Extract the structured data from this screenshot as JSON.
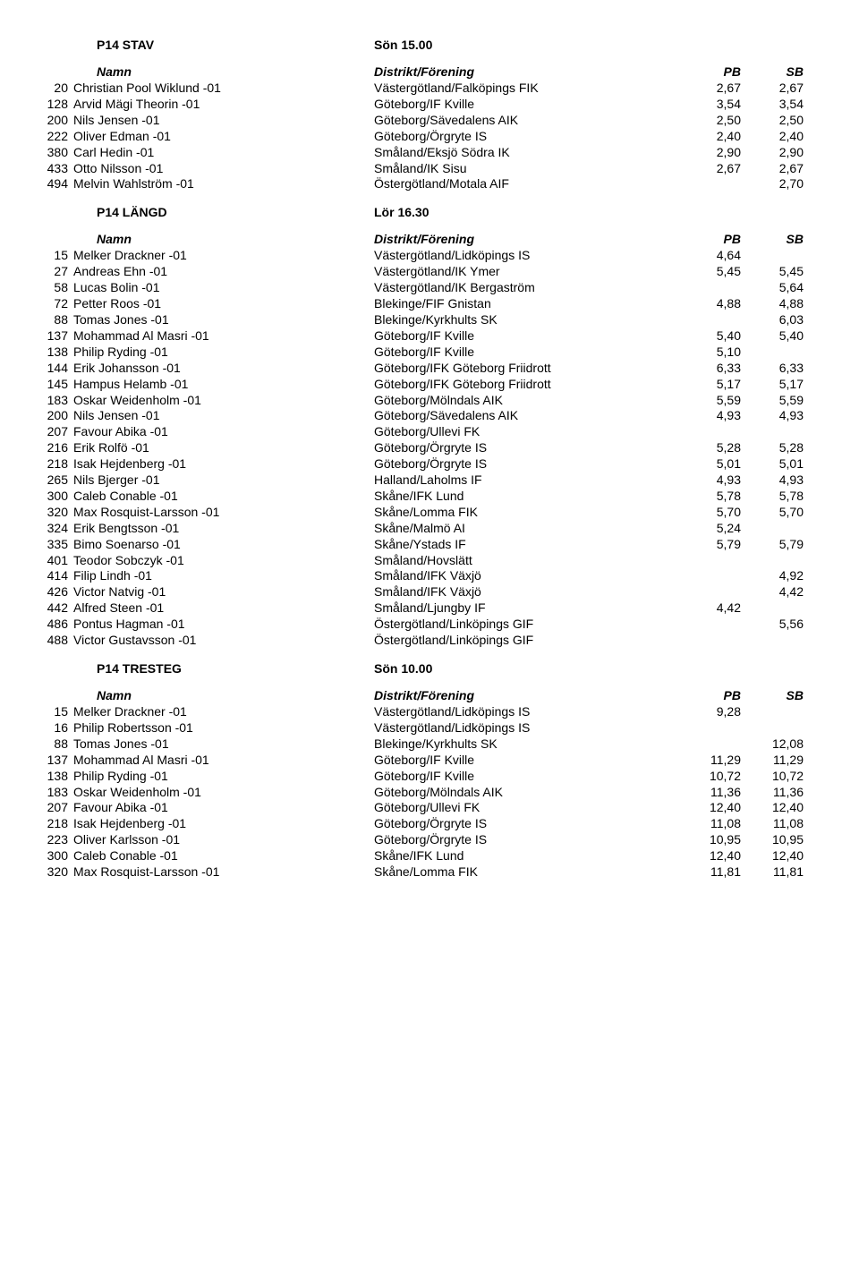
{
  "sections": [
    {
      "title": "P14 STAV",
      "time": "Sön 15.00",
      "header": {
        "name": "Namn",
        "dist": "Distrikt/Förening",
        "pb": "PB",
        "sb": "SB"
      },
      "rows": [
        {
          "num": "20",
          "name": "Christian Pool Wiklund -01",
          "dist": "Västergötland/Falköpings FIK",
          "pb": "2,67",
          "sb": "2,67"
        },
        {
          "num": "128",
          "name": "Arvid Mägi Theorin -01",
          "dist": "Göteborg/IF Kville",
          "pb": "3,54",
          "sb": "3,54"
        },
        {
          "num": "200",
          "name": "Nils Jensen -01",
          "dist": "Göteborg/Sävedalens AIK",
          "pb": "2,50",
          "sb": "2,50"
        },
        {
          "num": "222",
          "name": "Oliver Edman -01",
          "dist": "Göteborg/Örgryte IS",
          "pb": "2,40",
          "sb": "2,40"
        },
        {
          "num": "380",
          "name": "Carl Hedin -01",
          "dist": "Småland/Eksjö Södra IK",
          "pb": "2,90",
          "sb": "2,90"
        },
        {
          "num": "433",
          "name": "Otto Nilsson -01",
          "dist": "Småland/IK Sisu",
          "pb": "2,67",
          "sb": "2,67"
        },
        {
          "num": "494",
          "name": "Melvin Wahlström -01",
          "dist": "Östergötland/Motala AIF",
          "pb": "",
          "sb": "2,70"
        }
      ]
    },
    {
      "title": "P14 LÄNGD",
      "time": "Lör 16.30",
      "header": {
        "name": "Namn",
        "dist": "Distrikt/Förening",
        "pb": "PB",
        "sb": "SB"
      },
      "rows": [
        {
          "num": "15",
          "name": "Melker Drackner -01",
          "dist": "Västergötland/Lidköpings IS",
          "pb": "4,64",
          "sb": ""
        },
        {
          "num": "27",
          "name": "Andreas Ehn -01",
          "dist": "Västergötland/IK Ymer",
          "pb": "5,45",
          "sb": "5,45"
        },
        {
          "num": "58",
          "name": "Lucas Bolin -01",
          "dist": "Västergötland/IK Bergaström",
          "pb": "",
          "sb": "5,64"
        },
        {
          "num": "72",
          "name": "Petter Roos -01",
          "dist": "Blekinge/FIF Gnistan",
          "pb": "4,88",
          "sb": "4,88"
        },
        {
          "num": "88",
          "name": "Tomas Jones -01",
          "dist": "Blekinge/Kyrkhults SK",
          "pb": "",
          "sb": "6,03"
        },
        {
          "num": "137",
          "name": "Mohammad Al Masri -01",
          "dist": "Göteborg/IF Kville",
          "pb": "5,40",
          "sb": "5,40"
        },
        {
          "num": "138",
          "name": "Philip Ryding -01",
          "dist": "Göteborg/IF Kville",
          "pb": "5,10",
          "sb": ""
        },
        {
          "num": "144",
          "name": "Erik Johansson -01",
          "dist": "Göteborg/IFK Göteborg Friidrott",
          "pb": "6,33",
          "sb": "6,33"
        },
        {
          "num": "145",
          "name": "Hampus Helamb -01",
          "dist": "Göteborg/IFK Göteborg Friidrott",
          "pb": "5,17",
          "sb": "5,17"
        },
        {
          "num": "183",
          "name": "Oskar Weidenholm -01",
          "dist": "Göteborg/Mölndals AIK",
          "pb": "5,59",
          "sb": "5,59"
        },
        {
          "num": "200",
          "name": "Nils Jensen -01",
          "dist": "Göteborg/Sävedalens AIK",
          "pb": "4,93",
          "sb": "4,93"
        },
        {
          "num": "207",
          "name": "Favour Abika -01",
          "dist": "Göteborg/Ullevi FK",
          "pb": "",
          "sb": ""
        },
        {
          "num": "216",
          "name": "Erik Rolfö -01",
          "dist": "Göteborg/Örgryte IS",
          "pb": "5,28",
          "sb": "5,28"
        },
        {
          "num": "218",
          "name": "Isak Hejdenberg -01",
          "dist": "Göteborg/Örgryte IS",
          "pb": "5,01",
          "sb": "5,01"
        },
        {
          "num": "265",
          "name": "Nils Bjerger -01",
          "dist": "Halland/Laholms IF",
          "pb": "4,93",
          "sb": "4,93"
        },
        {
          "num": "300",
          "name": "Caleb Conable -01",
          "dist": "Skåne/IFK Lund",
          "pb": "5,78",
          "sb": "5,78"
        },
        {
          "num": "320",
          "name": "Max Rosquist-Larsson -01",
          "dist": "Skåne/Lomma FIK",
          "pb": "5,70",
          "sb": "5,70"
        },
        {
          "num": "324",
          "name": "Erik Bengtsson -01",
          "dist": "Skåne/Malmö AI",
          "pb": "5,24",
          "sb": ""
        },
        {
          "num": "335",
          "name": "Bimo Soenarso -01",
          "dist": "Skåne/Ystads IF",
          "pb": "5,79",
          "sb": "5,79"
        },
        {
          "num": "401",
          "name": "Teodor Sobczyk -01",
          "dist": "Småland/Hovslätt",
          "pb": "",
          "sb": ""
        },
        {
          "num": "414",
          "name": "Filip Lindh -01",
          "dist": "Småland/IFK Växjö",
          "pb": "",
          "sb": "4,92"
        },
        {
          "num": "426",
          "name": "Victor Natvig -01",
          "dist": "Småland/IFK Växjö",
          "pb": "",
          "sb": "4,42"
        },
        {
          "num": "442",
          "name": "Alfred Steen -01",
          "dist": "Småland/Ljungby IF",
          "pb": "4,42",
          "sb": ""
        },
        {
          "num": "486",
          "name": "Pontus Hagman -01",
          "dist": "Östergötland/Linköpings GIF",
          "pb": "",
          "sb": "5,56"
        },
        {
          "num": "488",
          "name": "Victor Gustavsson -01",
          "dist": "Östergötland/Linköpings GIF",
          "pb": "",
          "sb": ""
        }
      ]
    },
    {
      "title": "P14 TRESTEG",
      "time": "Sön 10.00",
      "header": {
        "name": "Namn",
        "dist": "Distrikt/Förening",
        "pb": "PB",
        "sb": "SB"
      },
      "rows": [
        {
          "num": "15",
          "name": "Melker Drackner -01",
          "dist": "Västergötland/Lidköpings IS",
          "pb": "9,28",
          "sb": ""
        },
        {
          "num": "16",
          "name": "Philip Robertsson -01",
          "dist": "Västergötland/Lidköpings IS",
          "pb": "",
          "sb": ""
        },
        {
          "num": "88",
          "name": "Tomas Jones -01",
          "dist": "Blekinge/Kyrkhults SK",
          "pb": "",
          "sb": "12,08"
        },
        {
          "num": "137",
          "name": "Mohammad Al Masri -01",
          "dist": "Göteborg/IF Kville",
          "pb": "11,29",
          "sb": "11,29"
        },
        {
          "num": "138",
          "name": "Philip Ryding -01",
          "dist": "Göteborg/IF Kville",
          "pb": "10,72",
          "sb": "10,72"
        },
        {
          "num": "183",
          "name": "Oskar Weidenholm -01",
          "dist": "Göteborg/Mölndals AIK",
          "pb": "11,36",
          "sb": "11,36"
        },
        {
          "num": "207",
          "name": "Favour Abika -01",
          "dist": "Göteborg/Ullevi FK",
          "pb": "12,40",
          "sb": "12,40"
        },
        {
          "num": "218",
          "name": "Isak Hejdenberg -01",
          "dist": "Göteborg/Örgryte IS",
          "pb": "11,08",
          "sb": "11,08"
        },
        {
          "num": "223",
          "name": "Oliver Karlsson -01",
          "dist": "Göteborg/Örgryte IS",
          "pb": "10,95",
          "sb": "10,95"
        },
        {
          "num": "300",
          "name": "Caleb Conable -01",
          "dist": "Skåne/IFK Lund",
          "pb": "12,40",
          "sb": "12,40"
        },
        {
          "num": "320",
          "name": "Max Rosquist-Larsson -01",
          "dist": "Skåne/Lomma FIK",
          "pb": "11,81",
          "sb": "11,81"
        }
      ]
    }
  ]
}
